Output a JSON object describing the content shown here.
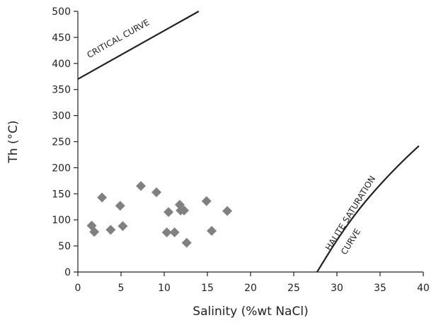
{
  "chart_data": {
    "type": "scatter",
    "xlabel": "Salinity (%wt NaCl)",
    "ylabel": "Th (°C)",
    "xlim": [
      0,
      40
    ],
    "ylim": [
      0,
      500
    ],
    "xticks": [
      0,
      5,
      10,
      15,
      20,
      25,
      30,
      35,
      40
    ],
    "yticks": [
      0,
      50,
      100,
      150,
      200,
      250,
      300,
      350,
      400,
      450,
      500
    ],
    "grid": false,
    "marker": "diamond",
    "marker_color": "#808080",
    "series": [
      {
        "x": [
          1.6,
          1.9,
          2.8,
          3.8,
          4.9,
          5.2,
          7.3,
          9.1,
          10.3,
          10.5,
          11.2,
          11.8,
          11.9,
          12.3,
          12.6,
          14.9,
          15.5,
          17.3
        ],
        "y": [
          89,
          77,
          143,
          81,
          127,
          88,
          165,
          153,
          76,
          115,
          76,
          129,
          118,
          118,
          56,
          136,
          79,
          117
        ]
      }
    ],
    "curves": [
      {
        "label": "CRITICAL CURVE",
        "points": [
          [
            0,
            370
          ],
          [
            14,
            500
          ]
        ]
      },
      {
        "label_lines": [
          "HALITE SATURATION",
          "CURVE"
        ],
        "points": [
          [
            27.7,
            0
          ],
          [
            30,
            62
          ],
          [
            32.5,
            120
          ],
          [
            35,
            168
          ],
          [
            37.5,
            211
          ],
          [
            39.5,
            242
          ]
        ]
      }
    ]
  }
}
